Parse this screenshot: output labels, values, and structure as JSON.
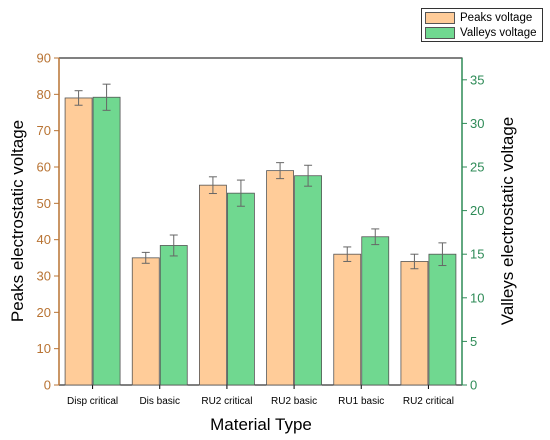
{
  "chart_data": {
    "type": "bar",
    "xlabel": "Material Type",
    "y1label": "Peaks electrostatic voltage",
    "y2label": "Valleys electrostatic voltage",
    "categories": [
      "Disp critical",
      "Dis basic",
      "RU2 critical",
      "RU2 basic",
      "RU1 basic",
      "RU2 critical"
    ],
    "y1lim": [
      0,
      90
    ],
    "y1ticks": [
      0,
      10,
      20,
      30,
      40,
      50,
      60,
      70,
      80,
      90
    ],
    "y2lim": [
      0,
      37.5
    ],
    "y2ticks": [
      0,
      5,
      10,
      15,
      20,
      25,
      30,
      35
    ],
    "grid": false,
    "legend_position": "top-right",
    "series": [
      {
        "name": "Peaks voltage",
        "axis": "left",
        "color": "#FFCC99",
        "values": [
          79,
          35,
          55,
          59,
          36,
          34
        ],
        "errors": [
          2,
          1.5,
          2.3,
          2.2,
          2,
          2
        ]
      },
      {
        "name": "Valleys voltage",
        "axis": "right",
        "color": "#70D890",
        "values": [
          33,
          16,
          22,
          24,
          17,
          15
        ],
        "errors": [
          1.5,
          1.2,
          1.5,
          1.2,
          0.9,
          1.3
        ]
      }
    ],
    "colors": {
      "left_axis": "#B87333",
      "right_axis": "#2E8B57",
      "bar_border": "#555555",
      "error_bar": "#666666"
    }
  }
}
